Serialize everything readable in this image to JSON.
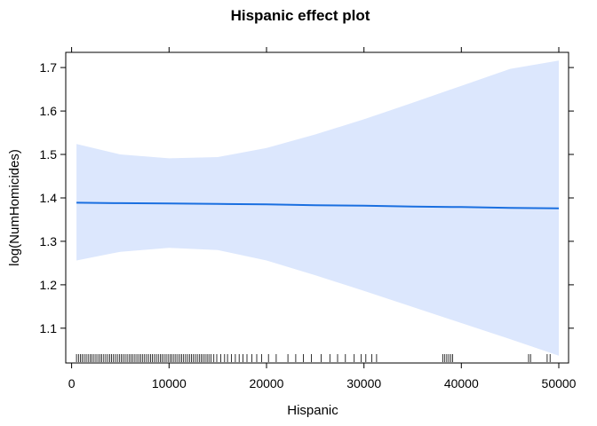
{
  "chart_data": {
    "type": "line",
    "title": "Hispanic effect plot",
    "xlabel": "Hispanic",
    "ylabel": "log(NumHomicides)",
    "xlim": [
      -600,
      51000
    ],
    "ylim": [
      1.02,
      1.735
    ],
    "x_ticks": [
      0,
      10000,
      20000,
      30000,
      40000,
      50000
    ],
    "x_tick_labels": [
      "0",
      "10000",
      "20000",
      "30000",
      "40000",
      "50000"
    ],
    "y_ticks": [
      1.1,
      1.2,
      1.3,
      1.4,
      1.5,
      1.6,
      1.7
    ],
    "y_tick_labels": [
      "1.1",
      "1.2",
      "1.3",
      "1.4",
      "1.5",
      "1.6",
      "1.7"
    ],
    "grid": false,
    "fit_color": "#1a6fe0",
    "band_color": "#dce7fd",
    "series": [
      {
        "x": [
          500,
          5000,
          10000,
          15000,
          20000,
          25000,
          30000,
          35000,
          40000,
          45000,
          50000
        ],
        "y": [
          1.389,
          1.388,
          1.387,
          1.386,
          1.385,
          1.383,
          1.382,
          1.38,
          1.379,
          1.377,
          1.376
        ],
        "lower": [
          1.256,
          1.276,
          1.285,
          1.28,
          1.256,
          1.222,
          1.186,
          1.149,
          1.112,
          1.075,
          1.037
        ],
        "upper": [
          1.524,
          1.5,
          1.491,
          1.494,
          1.515,
          1.546,
          1.581,
          1.619,
          1.658,
          1.697,
          1.716
        ]
      }
    ],
    "rug": [
      500,
      700,
      900,
      1100,
      1300,
      1500,
      1700,
      1900,
      2100,
      2300,
      2500,
      2700,
      2900,
      3100,
      3300,
      3500,
      3700,
      3900,
      4100,
      4300,
      4500,
      4700,
      4900,
      5100,
      5300,
      5500,
      5700,
      5900,
      6100,
      6300,
      6500,
      6700,
      6900,
      7100,
      7300,
      7500,
      7700,
      7900,
      8100,
      8300,
      8500,
      8700,
      8900,
      9100,
      9300,
      9500,
      9700,
      9900,
      10100,
      10300,
      10500,
      10700,
      10900,
      11100,
      11300,
      11500,
      11700,
      11900,
      12100,
      12300,
      12500,
      12700,
      12900,
      13100,
      13300,
      13500,
      13700,
      13900,
      14100,
      14300,
      14600,
      14900,
      15300,
      15700,
      16000,
      16400,
      16800,
      17200,
      17600,
      18000,
      18500,
      19000,
      19500,
      20200,
      21000,
      22200,
      23000,
      23800,
      24600,
      25600,
      26500,
      27300,
      28100,
      29000,
      29700,
      30200,
      30800,
      31300,
      38100,
      38300,
      38500,
      38700,
      38900,
      39100,
      46900,
      47100,
      48800,
      49100
    ]
  }
}
